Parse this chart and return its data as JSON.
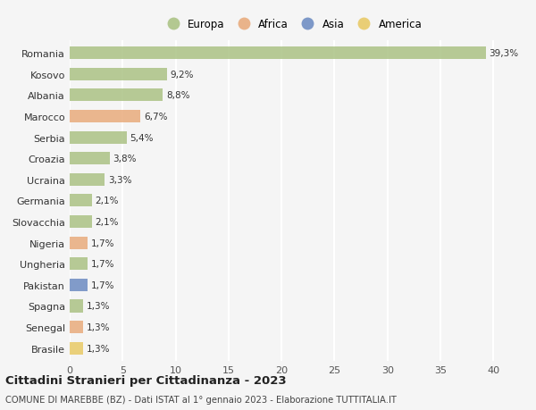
{
  "categories": [
    "Romania",
    "Kosovo",
    "Albania",
    "Marocco",
    "Serbia",
    "Croazia",
    "Ucraina",
    "Germania",
    "Slovacchia",
    "Nigeria",
    "Ungheria",
    "Pakistan",
    "Spagna",
    "Senegal",
    "Brasile"
  ],
  "values": [
    39.3,
    9.2,
    8.8,
    6.7,
    5.4,
    3.8,
    3.3,
    2.1,
    2.1,
    1.7,
    1.7,
    1.7,
    1.3,
    1.3,
    1.3
  ],
  "labels": [
    "39,3%",
    "9,2%",
    "8,8%",
    "6,7%",
    "5,4%",
    "3,8%",
    "3,3%",
    "2,1%",
    "2,1%",
    "1,7%",
    "1,7%",
    "1,7%",
    "1,3%",
    "1,3%",
    "1,3%"
  ],
  "colors": [
    "#a8c080",
    "#a8c080",
    "#a8c080",
    "#e8a878",
    "#a8c080",
    "#a8c080",
    "#a8c080",
    "#a8c080",
    "#a8c080",
    "#e8a878",
    "#a8c080",
    "#6888c0",
    "#a8c080",
    "#e8a878",
    "#e8c860"
  ],
  "legend_labels": [
    "Europa",
    "Africa",
    "Asia",
    "America"
  ],
  "legend_colors": [
    "#a8c080",
    "#e8a878",
    "#6888c0",
    "#e8c860"
  ],
  "title": "Cittadini Stranieri per Cittadinanza - 2023",
  "subtitle": "COMUNE DI MAREBBE (BZ) - Dati ISTAT al 1° gennaio 2023 - Elaborazione TUTTITALIA.IT",
  "xlim": [
    0,
    42
  ],
  "xticks": [
    0,
    5,
    10,
    15,
    20,
    25,
    30,
    35,
    40
  ],
  "background_color": "#f5f5f5",
  "grid_color": "#ffffff",
  "bar_height": 0.6
}
